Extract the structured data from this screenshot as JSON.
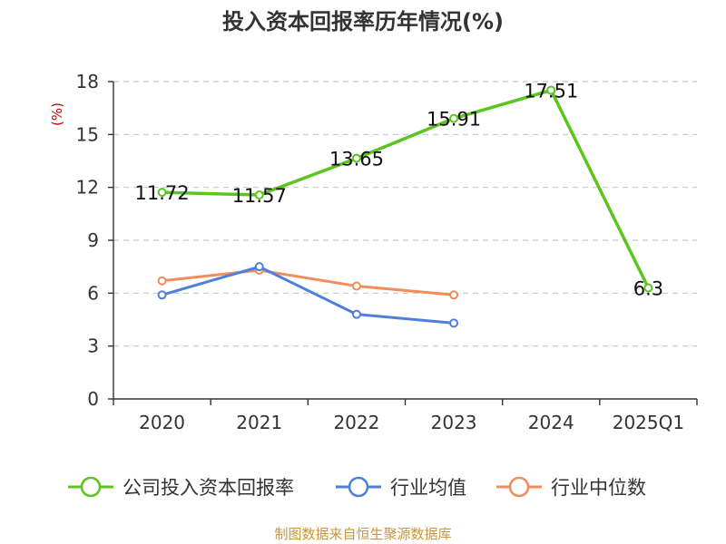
{
  "chart_data": {
    "type": "line",
    "title": "投入资本回报率历年情况(%)",
    "ylabel": "(%)",
    "categories": [
      "2020",
      "2021",
      "2022",
      "2023",
      "2024",
      "2025Q1"
    ],
    "ylim": [
      0,
      18
    ],
    "yticks": [
      0,
      3,
      6,
      9,
      12,
      15,
      18
    ],
    "grid": true,
    "legend_position": "bottom",
    "series": [
      {
        "name": "公司投入资本回报率",
        "color": "#5bc41f",
        "values": [
          11.72,
          11.57,
          13.65,
          15.91,
          17.51,
          6.3
        ],
        "labels": [
          "11.72",
          "11.57",
          "13.65",
          "15.91",
          "17.51",
          "6.3"
        ]
      },
      {
        "name": "行业均值",
        "color": "#4f7fdc",
        "values": [
          5.9,
          7.5,
          4.8,
          4.3,
          null,
          null
        ]
      },
      {
        "name": "行业中位数",
        "color": "#f28c5a",
        "values": [
          6.7,
          7.3,
          6.4,
          5.9,
          null,
          null
        ]
      }
    ]
  },
  "source": "制图数据来自恒生聚源数据库"
}
